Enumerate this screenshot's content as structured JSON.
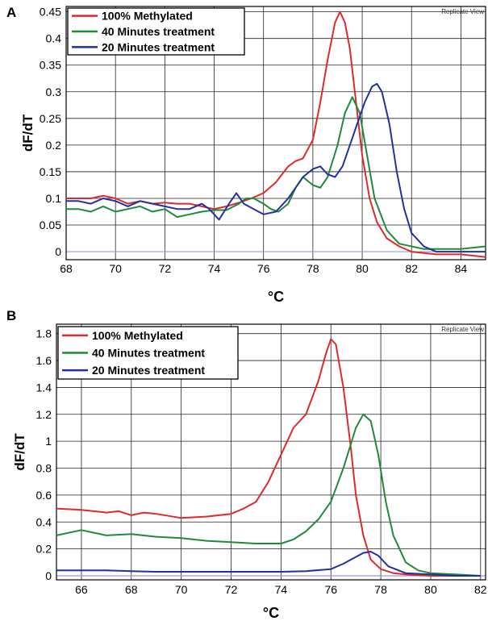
{
  "chart_data": [
    {
      "panel": "A",
      "type": "line",
      "corner_label": "Replicate View",
      "xlabel": "°C",
      "ylabel": "dF/dT",
      "xlim": [
        68,
        85
      ],
      "ylim": [
        -0.015,
        0.46
      ],
      "xticks": [
        68,
        70,
        72,
        74,
        76,
        78,
        80,
        82,
        84
      ],
      "yticks": [
        0,
        0.05,
        0.1,
        0.15,
        0.2,
        0.25,
        0.3,
        0.35,
        0.4,
        0.45
      ],
      "ytick_labels": [
        "0",
        "0.05",
        "0.1",
        "0.15",
        "0.2",
        "0.25",
        "0.3",
        "0.35",
        "0.4",
        "0.45"
      ],
      "grid": true,
      "baseline": 0,
      "legend_position": "top-left",
      "series": [
        {
          "name": "100% Methylated",
          "color": "#dd2b2b",
          "x": [
            68,
            68.5,
            69,
            69.5,
            70,
            70.5,
            71,
            71.5,
            72,
            72.5,
            73,
            73.5,
            74,
            74.5,
            75,
            75.5,
            76,
            76.5,
            77,
            77.3,
            77.6,
            78,
            78.3,
            78.6,
            78.9,
            79.1,
            79.3,
            79.5,
            79.7,
            80,
            80.3,
            80.6,
            81,
            81.5,
            82,
            83,
            84,
            85
          ],
          "y": [
            0.1,
            0.1,
            0.1,
            0.105,
            0.1,
            0.09,
            0.095,
            0.09,
            0.092,
            0.09,
            0.09,
            0.085,
            0.08,
            0.085,
            0.092,
            0.1,
            0.11,
            0.13,
            0.16,
            0.17,
            0.175,
            0.21,
            0.28,
            0.36,
            0.43,
            0.45,
            0.43,
            0.38,
            0.3,
            0.18,
            0.1,
            0.055,
            0.025,
            0.01,
            0,
            -0.005,
            -0.005,
            -0.01
          ]
        },
        {
          "name": "40 Minutes treatment",
          "color": "#1f8a3a",
          "x": [
            68,
            68.5,
            69,
            69.5,
            70,
            70.5,
            71,
            71.5,
            72,
            72.5,
            73,
            73.5,
            74,
            74.5,
            75,
            75.3,
            75.6,
            76,
            76.3,
            76.6,
            77,
            77.3,
            77.6,
            78,
            78.3,
            78.6,
            79,
            79.3,
            79.6,
            79.9,
            80.2,
            80.5,
            81,
            81.5,
            82,
            82.5,
            83,
            84,
            85
          ],
          "y": [
            0.08,
            0.08,
            0.075,
            0.085,
            0.075,
            0.08,
            0.085,
            0.075,
            0.08,
            0.065,
            0.07,
            0.075,
            0.078,
            0.078,
            0.09,
            0.1,
            0.1,
            0.09,
            0.08,
            0.075,
            0.09,
            0.12,
            0.14,
            0.125,
            0.12,
            0.14,
            0.2,
            0.26,
            0.29,
            0.26,
            0.18,
            0.1,
            0.04,
            0.015,
            0.01,
            0.005,
            0.005,
            0.005,
            0.01
          ]
        },
        {
          "name": "20 Minutes treatment",
          "color": "#2230a0",
          "x": [
            68,
            68.5,
            69,
            69.5,
            70,
            70.5,
            71,
            71.5,
            72,
            72.5,
            73,
            73.5,
            73.8,
            74.2,
            74.6,
            74.9,
            75.2,
            75.6,
            76,
            76.5,
            77,
            77.3,
            77.6,
            78,
            78.3,
            78.6,
            78.9,
            79.2,
            79.5,
            79.8,
            80.1,
            80.4,
            80.6,
            80.8,
            81.1,
            81.4,
            81.7,
            82,
            82.5,
            83,
            84,
            85
          ],
          "y": [
            0.095,
            0.095,
            0.09,
            0.1,
            0.095,
            0.085,
            0.095,
            0.09,
            0.085,
            0.08,
            0.08,
            0.09,
            0.08,
            0.06,
            0.09,
            0.11,
            0.09,
            0.08,
            0.07,
            0.075,
            0.1,
            0.12,
            0.14,
            0.155,
            0.16,
            0.145,
            0.14,
            0.16,
            0.2,
            0.24,
            0.28,
            0.31,
            0.315,
            0.3,
            0.24,
            0.15,
            0.08,
            0.035,
            0.01,
            0,
            0,
            0
          ]
        }
      ]
    },
    {
      "panel": "B",
      "type": "line",
      "corner_label": "Replicate View",
      "xlabel": "°C",
      "ylabel": "dF/dT",
      "xlim": [
        65,
        82.2
      ],
      "ylim": [
        -0.03,
        1.87
      ],
      "xticks": [
        66,
        68,
        70,
        72,
        74,
        76,
        78,
        80,
        82
      ],
      "yticks": [
        0,
        0.2,
        0.4,
        0.6,
        0.8,
        1,
        1.2,
        1.4,
        1.6,
        1.8
      ],
      "ytick_labels": [
        "0",
        "0.2",
        "0.4",
        "0.6",
        "0.8",
        "1",
        "1.2",
        "1.4",
        "1.6",
        "1.8"
      ],
      "grid": true,
      "baseline": 0,
      "legend_position": "top-left",
      "series": [
        {
          "name": "100% Methylated",
          "color": "#dd2b2b",
          "x": [
            65,
            66,
            67,
            67.5,
            68,
            68.5,
            69,
            70,
            71,
            72,
            72.5,
            73,
            73.5,
            74,
            74.5,
            75,
            75.5,
            75.8,
            76,
            76.2,
            76.5,
            76.8,
            77,
            77.3,
            77.6,
            78,
            78.5,
            79,
            80,
            81,
            82
          ],
          "y": [
            0.5,
            0.49,
            0.47,
            0.48,
            0.45,
            0.47,
            0.46,
            0.43,
            0.44,
            0.46,
            0.5,
            0.55,
            0.7,
            0.9,
            1.1,
            1.2,
            1.45,
            1.65,
            1.76,
            1.72,
            1.4,
            0.95,
            0.6,
            0.3,
            0.12,
            0.05,
            0.02,
            0.01,
            0,
            0,
            0
          ]
        },
        {
          "name": "40 Minutes treatment",
          "color": "#1f8a3a",
          "x": [
            65,
            66,
            67,
            68,
            69,
            70,
            71,
            72,
            73,
            74,
            74.5,
            75,
            75.5,
            76,
            76.5,
            77,
            77.3,
            77.6,
            77.9,
            78.2,
            78.5,
            79,
            79.5,
            80,
            81,
            82
          ],
          "y": [
            0.3,
            0.34,
            0.3,
            0.31,
            0.29,
            0.28,
            0.26,
            0.25,
            0.24,
            0.24,
            0.27,
            0.33,
            0.42,
            0.55,
            0.8,
            1.1,
            1.2,
            1.15,
            0.9,
            0.55,
            0.3,
            0.1,
            0.04,
            0.02,
            0.01,
            0
          ]
        },
        {
          "name": "20 Minutes treatment",
          "color": "#2230a0",
          "x": [
            65,
            66,
            67,
            68,
            69,
            70,
            71,
            72,
            73,
            74,
            75,
            76,
            76.5,
            77,
            77.3,
            77.6,
            77.9,
            78.3,
            79,
            80,
            81,
            82
          ],
          "y": [
            0.04,
            0.04,
            0.04,
            0.035,
            0.03,
            0.03,
            0.03,
            0.03,
            0.03,
            0.03,
            0.035,
            0.05,
            0.09,
            0.14,
            0.17,
            0.18,
            0.15,
            0.07,
            0.02,
            0.01,
            0,
            0
          ]
        }
      ]
    }
  ]
}
